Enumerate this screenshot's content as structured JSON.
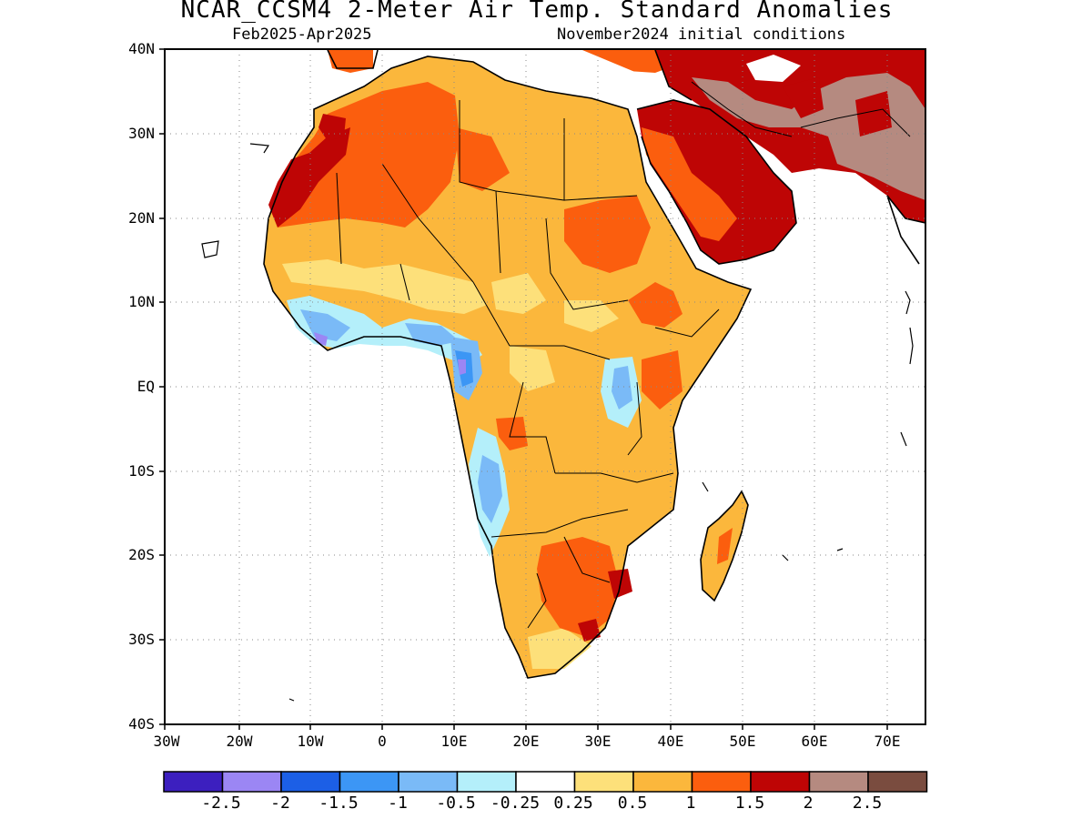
{
  "header": {
    "title": "NCAR_CCSM4 2-Meter Air Temp. Standard Anomalies",
    "period": "Feb2025-Apr2025",
    "init": "November2024 initial conditions"
  },
  "axes": {
    "lat_labels": [
      "40N",
      "30N",
      "20N",
      "10N",
      "EQ",
      "10S",
      "20S",
      "30S",
      "40S"
    ],
    "lon_labels": [
      "30W",
      "20W",
      "10W",
      "0",
      "10E",
      "20E",
      "30E",
      "40E",
      "50E",
      "60E",
      "70E"
    ]
  },
  "colorbar": {
    "colors": [
      "#3c1fbf",
      "#9b86f4",
      "#1c5fe6",
      "#3c96f5",
      "#7abaf7",
      "#b4effa",
      "#ffffff",
      "#fde07a",
      "#fbb73c",
      "#fb5e0e",
      "#be0505",
      "#b58a80",
      "#7a4c3f"
    ],
    "labels": [
      "-2.5",
      "-2",
      "-1.5",
      "-1",
      "-0.5",
      "-0.25",
      "0.25",
      "0.5",
      "1",
      "1.5",
      "2",
      "2.5"
    ]
  },
  "regions": [
    {
      "name": "sahara-west",
      "color": "#fb5e0e"
    },
    {
      "name": "sahel",
      "color": "#fbb73c"
    },
    {
      "name": "arabia",
      "color": "#be0505"
    },
    {
      "name": "iran",
      "color": "#b58a80"
    },
    {
      "name": "guinea-coast",
      "color": "#7abaf7"
    },
    {
      "name": "angola-coast",
      "color": "#3c96f5"
    },
    {
      "name": "southern-africa",
      "color": "#fb5e0e"
    }
  ]
}
